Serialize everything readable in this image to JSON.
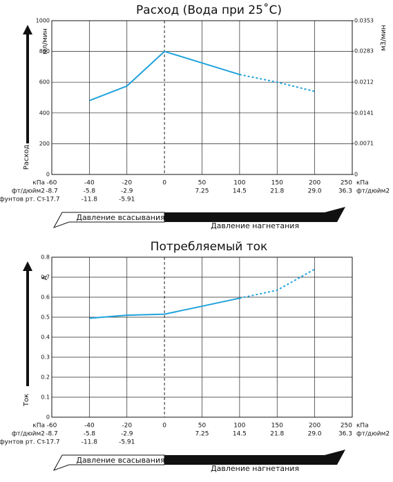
{
  "chart_data": [
    {
      "type": "line",
      "title": "Расход (Вода при 25˚C)",
      "ylabel": "мл/мин",
      "y2label": "м3/мин",
      "y_arrow_label": "Расход",
      "categories": [
        "-60",
        "-40",
        "-20",
        "0",
        "50",
        "100",
        "150",
        "200",
        "250"
      ],
      "x_unit": "кПа",
      "x_rows": [
        {
          "label": "фт/дюйм2",
          "unit": "фт/дюйм2",
          "labels": [
            "-8.7",
            "-5.8",
            "-2.9",
            null,
            "7.25",
            "14.5",
            "21.8",
            "29.0",
            "36.3"
          ]
        },
        {
          "label": "фунтов рт. Ст",
          "labels": [
            "-17.7",
            "-11.8",
            "-5.91",
            null,
            null,
            null,
            null,
            null,
            null
          ]
        }
      ],
      "vline": 0,
      "series": [
        {
          "color": "#1ea2dc",
          "dashed": false,
          "values": [
            null,
            480,
            575,
            800,
            725,
            650,
            null,
            null,
            null
          ]
        },
        {
          "color": "#1ea2dc",
          "dashed": true,
          "values": [
            null,
            null,
            null,
            null,
            null,
            650,
            600,
            540,
            null
          ]
        }
      ],
      "ylim": [
        0,
        1000
      ],
      "yticks": [
        0,
        200,
        400,
        600,
        800,
        1000
      ],
      "y2lim": [
        0,
        0.0353
      ],
      "y2ticks": [
        0,
        0.0071,
        0.0141,
        0.0212,
        0.0283,
        0.0353
      ],
      "grid": true,
      "pressure_labels": [
        "Давление всасывания",
        "Давление нагнетания"
      ]
    },
    {
      "type": "line",
      "title": "Потребляемый ток",
      "ylabel": "A",
      "y_arrow_label": "Ток",
      "categories": [
        "-60",
        "-40",
        "-20",
        "0",
        "50",
        "100",
        "150",
        "200",
        "250"
      ],
      "x_unit": "кПа",
      "x_rows": [
        {
          "label": "фт/дюйм2",
          "unit": "фт/дюйм2",
          "labels": [
            "-8.7",
            "-5.8",
            "-2.9",
            null,
            "7.25",
            "14.5",
            "21.8",
            "29.0",
            "36.3"
          ]
        },
        {
          "label": "фунтов рт. Ст",
          "labels": [
            "-17.7",
            "-11.8",
            "-5.91",
            null,
            null,
            null,
            null,
            null,
            null
          ]
        }
      ],
      "vline": 0,
      "series": [
        {
          "color": "#1ea2dc",
          "dashed": false,
          "values": [
            null,
            0.495,
            0.51,
            0.515,
            0.555,
            0.595,
            null,
            null,
            null
          ]
        },
        {
          "color": "#1ea2dc",
          "dashed": true,
          "values": [
            null,
            null,
            null,
            null,
            null,
            0.595,
            0.635,
            0.74,
            null
          ]
        }
      ],
      "ylim": [
        0,
        0.8
      ],
      "yticks": [
        0,
        0.1,
        0.2,
        0.3,
        0.4,
        0.5,
        0.6,
        0.7,
        0.8
      ],
      "grid": true,
      "pressure_labels": [
        "Давление всасывания",
        "Давление нагнетания"
      ]
    }
  ]
}
